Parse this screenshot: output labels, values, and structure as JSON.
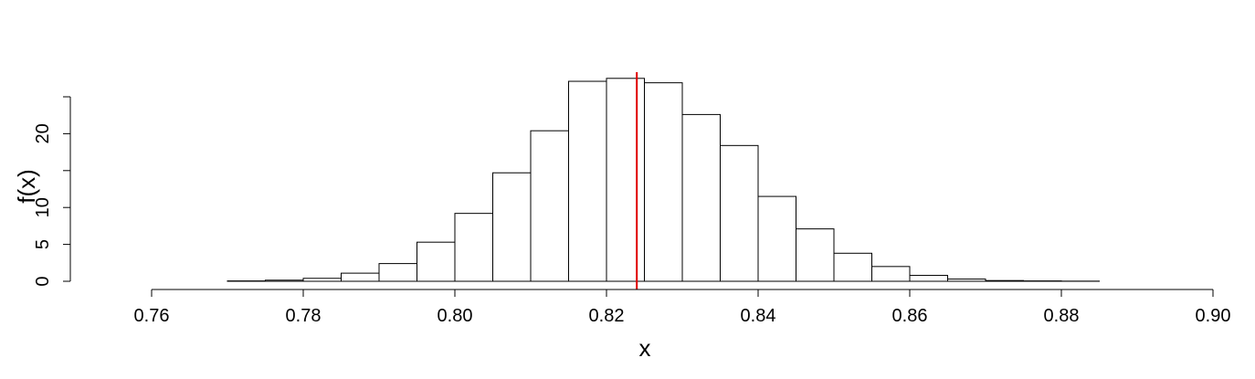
{
  "chart_data": {
    "type": "bar",
    "subtype": "histogram",
    "xlabel": "x",
    "ylabel": "f(x)",
    "xlim": [
      0.755,
      0.905
    ],
    "ylim": [
      0,
      27
    ],
    "x_ticks": [
      0.76,
      0.78,
      0.8,
      0.82,
      0.84,
      0.86,
      0.88,
      0.9
    ],
    "x_tick_labels": [
      "0.76",
      "0.78",
      "0.80",
      "0.82",
      "0.84",
      "0.86",
      "0.88",
      "0.90"
    ],
    "y_ticks": [
      0,
      5,
      10,
      15,
      20,
      25
    ],
    "y_tick_labels": [
      "0",
      "5",
      "10",
      "",
      "20",
      ""
    ],
    "bins": [
      {
        "x0": 0.755,
        "x1": 0.76,
        "value": 0.0
      },
      {
        "x0": 0.76,
        "x1": 0.765,
        "value": 0.0
      },
      {
        "x0": 0.765,
        "x1": 0.77,
        "value": 0.0
      },
      {
        "x0": 0.77,
        "x1": 0.775,
        "value": 0.05
      },
      {
        "x0": 0.775,
        "x1": 0.78,
        "value": 0.15
      },
      {
        "x0": 0.78,
        "x1": 0.785,
        "value": 0.4
      },
      {
        "x0": 0.785,
        "x1": 0.79,
        "value": 1.1
      },
      {
        "x0": 0.79,
        "x1": 0.795,
        "value": 2.4
      },
      {
        "x0": 0.795,
        "x1": 0.8,
        "value": 5.3
      },
      {
        "x0": 0.8,
        "x1": 0.805,
        "value": 9.2
      },
      {
        "x0": 0.805,
        "x1": 0.81,
        "value": 14.7
      },
      {
        "x0": 0.81,
        "x1": 0.815,
        "value": 20.4
      },
      {
        "x0": 0.815,
        "x1": 0.82,
        "value": 27.1
      },
      {
        "x0": 0.82,
        "x1": 0.825,
        "value": 27.5
      },
      {
        "x0": 0.825,
        "x1": 0.83,
        "value": 26.9
      },
      {
        "x0": 0.83,
        "x1": 0.835,
        "value": 22.6
      },
      {
        "x0": 0.835,
        "x1": 0.84,
        "value": 18.4
      },
      {
        "x0": 0.84,
        "x1": 0.845,
        "value": 11.5
      },
      {
        "x0": 0.845,
        "x1": 0.85,
        "value": 7.1
      },
      {
        "x0": 0.85,
        "x1": 0.855,
        "value": 3.8
      },
      {
        "x0": 0.855,
        "x1": 0.86,
        "value": 2.0
      },
      {
        "x0": 0.86,
        "x1": 0.865,
        "value": 0.8
      },
      {
        "x0": 0.865,
        "x1": 0.87,
        "value": 0.3
      },
      {
        "x0": 0.87,
        "x1": 0.875,
        "value": 0.1
      },
      {
        "x0": 0.875,
        "x1": 0.88,
        "value": 0.05
      },
      {
        "x0": 0.88,
        "x1": 0.885,
        "value": 0.02
      },
      {
        "x0": 0.885,
        "x1": 0.89,
        "value": 0.0
      },
      {
        "x0": 0.89,
        "x1": 0.895,
        "value": 0.0
      }
    ],
    "reference_line": {
      "x": 0.824,
      "color": "#e00000"
    },
    "grid": false,
    "legend": "none"
  }
}
